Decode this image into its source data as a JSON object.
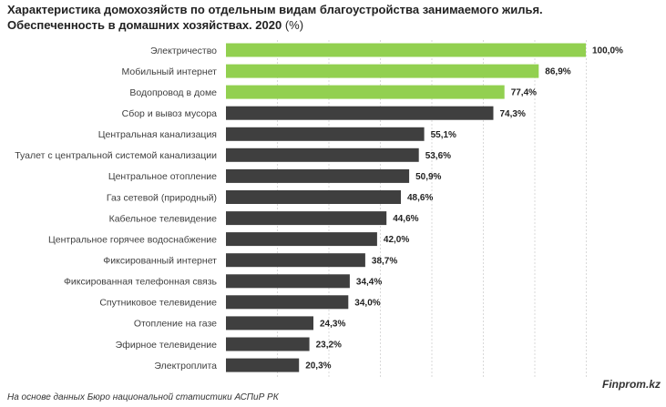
{
  "header": {
    "title": "Характеристика домохозяйств по отдельным видам благоустройства занимаемого жилья. Обеспеченность в домашних хозяйствах. 2020",
    "unit": "(%)"
  },
  "footer": {
    "source": "На основе данных Бюро национальной статистики АСПиР РК",
    "brand": "Finprom.kz"
  },
  "colors": {
    "highlight": "#92d050",
    "default": "#3f3f3f",
    "grid": "#d9d9d9"
  },
  "chart_data": {
    "type": "bar",
    "orientation": "horizontal",
    "title": "Характеристика домохозяйств по отдельным видам благоустройства занимаемого жилья. Обеспеченность в домашних хозяйствах. 2020 (%)",
    "categories": [
      "Электричество",
      "Мобильный интернет",
      "Водопровод в доме",
      "Сбор и вывоз мусора",
      "Центральная канализация",
      "Туалет с центральной системой канализации",
      "Центральное отопление",
      "Газ сетевой (природный)",
      "Кабельное телевидение",
      "Центральное горячее водоснабжение",
      "Фиксированный интернет",
      "Фиксированная телефонная связь",
      "Спутниковое телевидение",
      "Отопление на газе",
      "Эфирное телевидение",
      "Электроплита"
    ],
    "values": [
      100.0,
      86.9,
      77.4,
      74.3,
      55.1,
      53.6,
      50.9,
      48.6,
      44.6,
      42.0,
      38.7,
      34.4,
      34.0,
      24.3,
      23.2,
      20.3
    ],
    "value_labels": [
      "100,0%",
      "86,9%",
      "77,4%",
      "74,3%",
      "55,1%",
      "53,6%",
      "50,9%",
      "48,6%",
      "44,6%",
      "42,0%",
      "38,7%",
      "34,4%",
      "34,0%",
      "24,3%",
      "23,2%",
      "20,3%"
    ],
    "highlight_count": 3,
    "xlim": [
      0,
      100
    ],
    "grid": true
  }
}
